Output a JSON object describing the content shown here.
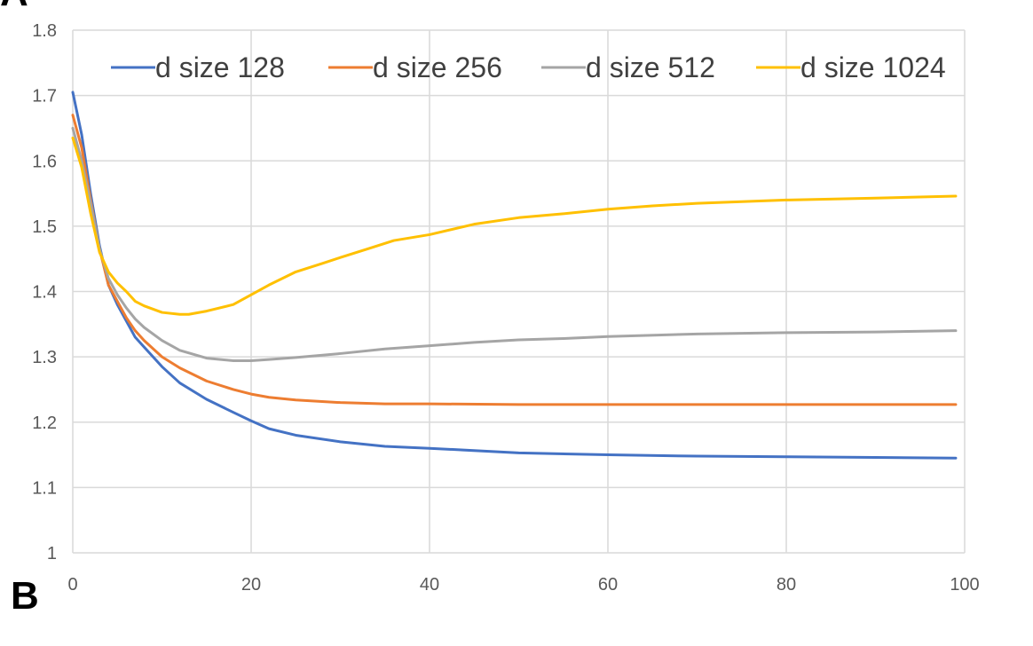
{
  "panel_labels": {
    "top": "A",
    "bottom": "B"
  },
  "chart_data": {
    "type": "line",
    "title": "",
    "xlabel": "",
    "ylabel": "",
    "xlim": [
      0,
      100
    ],
    "ylim": [
      1,
      1.8
    ],
    "x_ticks": [
      "0",
      "20",
      "40",
      "60",
      "80",
      "100"
    ],
    "y_ticks": [
      "1",
      "1.1",
      "1.2",
      "1.3",
      "1.4",
      "1.5",
      "1.6",
      "1.7",
      "1.8"
    ],
    "grid": true,
    "legend_position": "top",
    "series": [
      {
        "name": "d size 128",
        "color": "#4472C4",
        "x": [
          0,
          1,
          2,
          3,
          4,
          5,
          6,
          7,
          8,
          10,
          12,
          15,
          18,
          20,
          22,
          25,
          30,
          35,
          40,
          50,
          60,
          70,
          80,
          90,
          99
        ],
        "y": [
          1.705,
          1.64,
          1.55,
          1.47,
          1.41,
          1.38,
          1.355,
          1.33,
          1.315,
          1.285,
          1.26,
          1.235,
          1.215,
          1.202,
          1.19,
          1.18,
          1.17,
          1.163,
          1.16,
          1.153,
          1.15,
          1.148,
          1.147,
          1.146,
          1.145
        ]
      },
      {
        "name": "d size 256",
        "color": "#ED7D31",
        "x": [
          0,
          1,
          2,
          3,
          4,
          5,
          6,
          7,
          8,
          10,
          12,
          15,
          18,
          20,
          22,
          25,
          30,
          35,
          40,
          50,
          60,
          70,
          80,
          90,
          99
        ],
        "y": [
          1.67,
          1.62,
          1.54,
          1.465,
          1.41,
          1.385,
          1.36,
          1.34,
          1.325,
          1.3,
          1.283,
          1.263,
          1.25,
          1.243,
          1.238,
          1.234,
          1.23,
          1.228,
          1.228,
          1.227,
          1.227,
          1.227,
          1.227,
          1.227,
          1.227
        ]
      },
      {
        "name": "d size 512",
        "color": "#A5A5A5",
        "x": [
          0,
          1,
          2,
          3,
          4,
          5,
          6,
          7,
          8,
          10,
          12,
          15,
          18,
          20,
          22,
          25,
          30,
          35,
          40,
          45,
          50,
          55,
          60,
          70,
          80,
          90,
          99
        ],
        "y": [
          1.65,
          1.6,
          1.535,
          1.465,
          1.42,
          1.395,
          1.375,
          1.358,
          1.345,
          1.325,
          1.31,
          1.298,
          1.294,
          1.294,
          1.296,
          1.299,
          1.305,
          1.312,
          1.317,
          1.322,
          1.326,
          1.328,
          1.331,
          1.335,
          1.337,
          1.338,
          1.34
        ]
      },
      {
        "name": "d size 1024",
        "color": "#FFC000",
        "x": [
          0,
          1,
          2,
          3,
          4,
          5,
          6,
          7,
          8,
          10,
          12,
          13,
          15,
          18,
          20,
          22,
          25,
          28,
          30,
          33,
          36,
          40,
          45,
          50,
          55,
          60,
          65,
          70,
          80,
          90,
          99
        ],
        "y": [
          1.635,
          1.59,
          1.52,
          1.46,
          1.43,
          1.413,
          1.4,
          1.385,
          1.378,
          1.368,
          1.365,
          1.365,
          1.37,
          1.38,
          1.395,
          1.41,
          1.43,
          1.443,
          1.452,
          1.465,
          1.478,
          1.487,
          1.503,
          1.513,
          1.519,
          1.526,
          1.531,
          1.535,
          1.54,
          1.543,
          1.546
        ]
      }
    ]
  }
}
